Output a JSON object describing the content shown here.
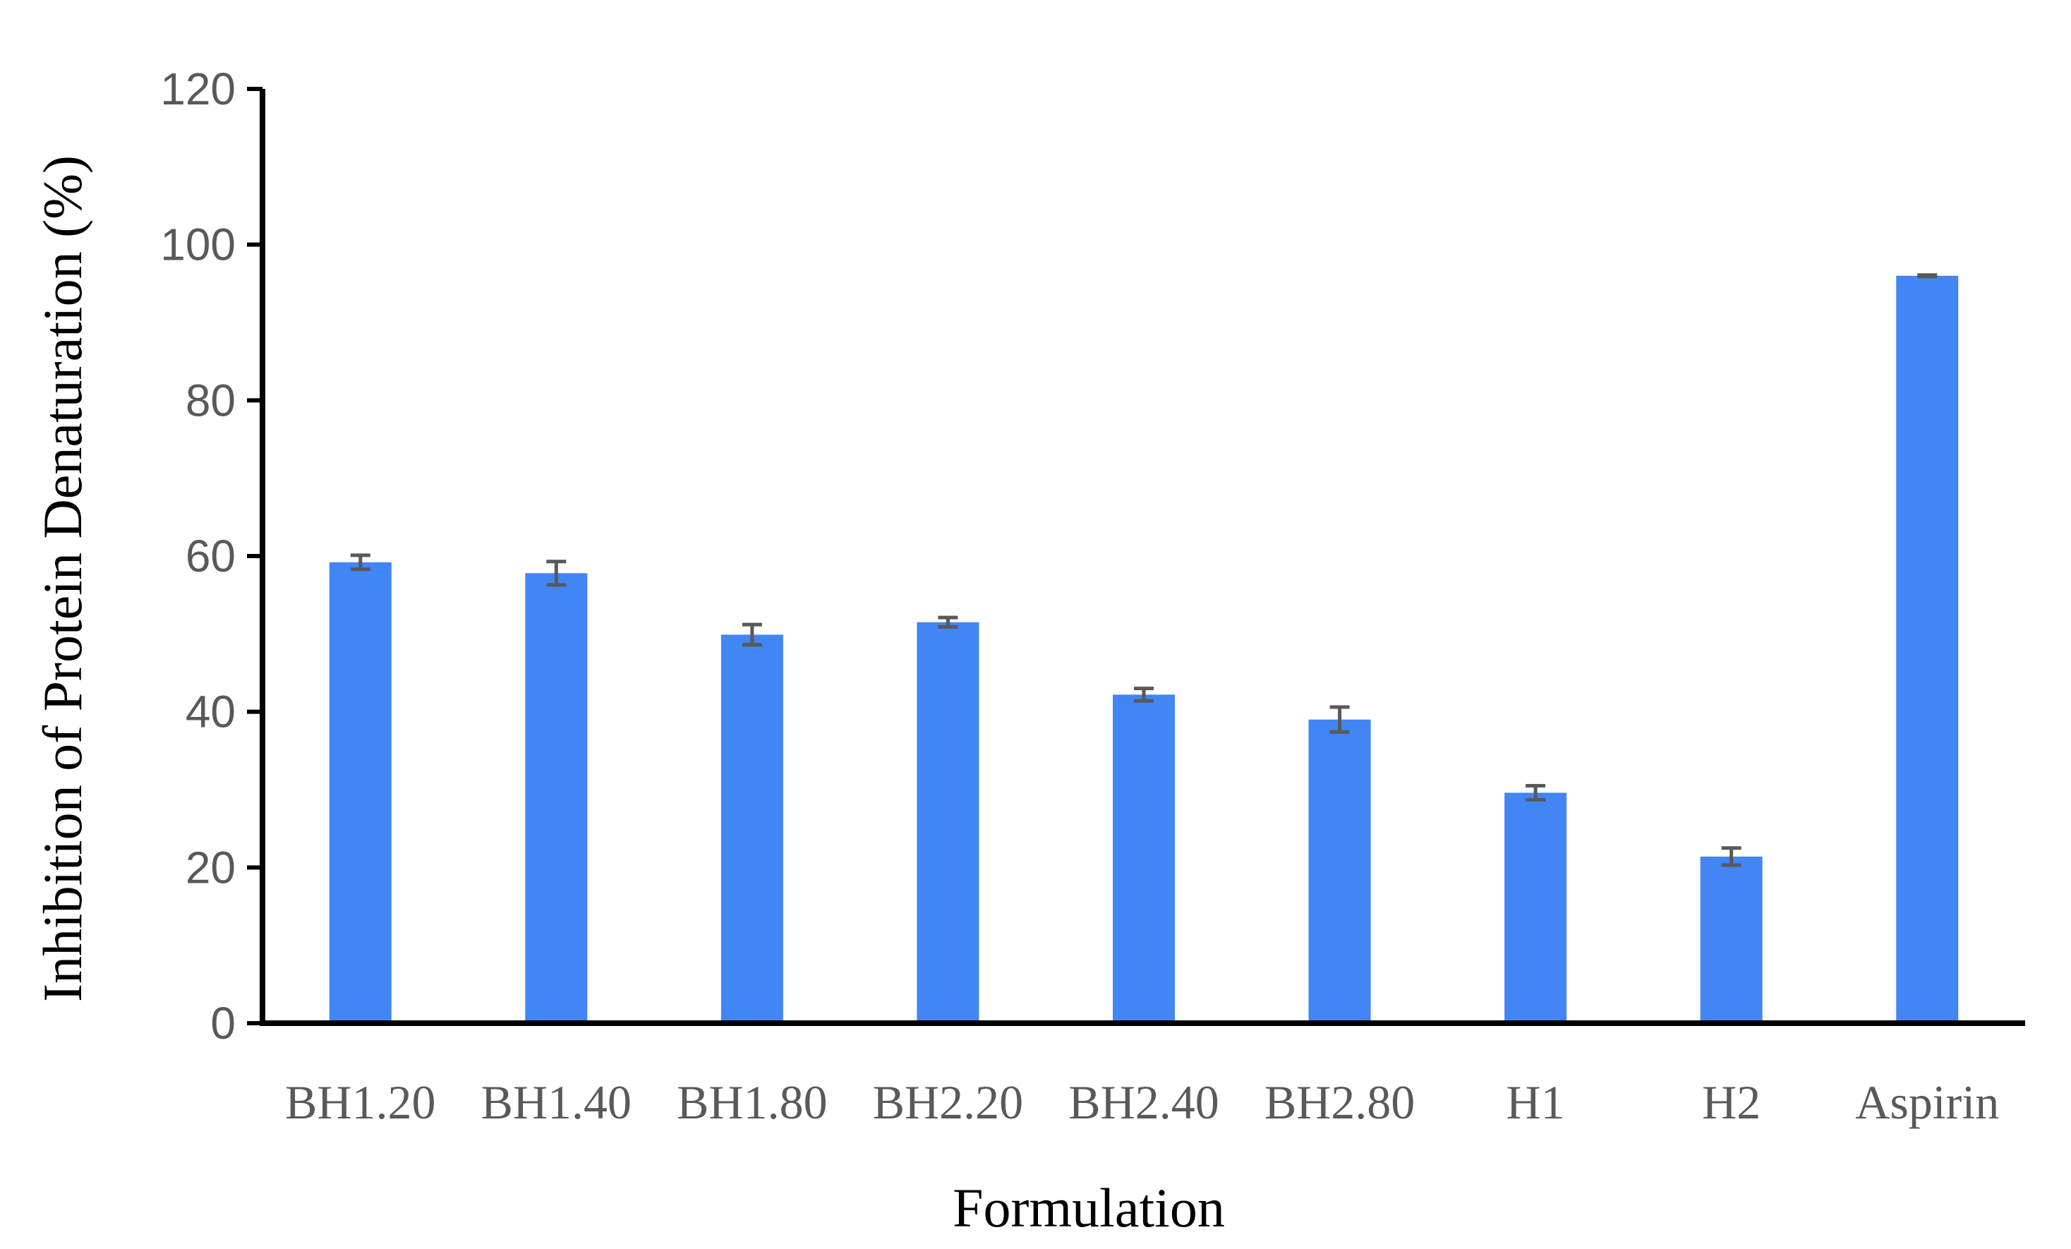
{
  "chart_data": {
    "type": "bar",
    "title": "",
    "xlabel": "Formulation",
    "ylabel": "Inhibition of Protein Denaturation (%)",
    "ylim": [
      0,
      120
    ],
    "yticks": [
      "0",
      "20",
      "40",
      "60",
      "80",
      "100",
      "120"
    ],
    "grid": false,
    "legend": "none",
    "categories": [
      "BH1.20",
      "BH1.40",
      "BH1.80",
      "BH2.20",
      "BH2.40",
      "BH2.80",
      "H1",
      "H2",
      "Aspirin"
    ],
    "values": [
      59.2,
      57.8,
      49.9,
      51.5,
      42.2,
      39.0,
      29.6,
      21.4,
      96.0
    ],
    "errors": [
      0.9,
      1.5,
      1.3,
      0.6,
      0.8,
      1.6,
      0.9,
      1.1,
      0.1
    ],
    "colors": {
      "bar": "#4285F4",
      "error_bar": "#595959",
      "axis": "#000000",
      "tick_label": "#595959"
    }
  }
}
